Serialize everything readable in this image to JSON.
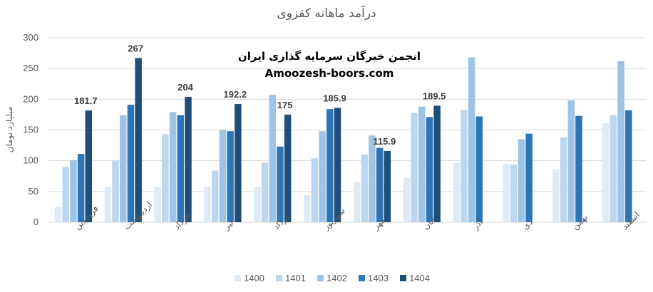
{
  "watermark": {
    "line1": "انجمن خبرگان سرمایه گذاری ایران",
    "line2": "Amoozesh-boors.com"
  },
  "chart_data": {
    "type": "bar",
    "title": "درآمد ماهانه کقزوی",
    "ylabel": "میلیارد تومان",
    "xlabel": "",
    "ylim": [
      0,
      300
    ],
    "yticks": [
      0,
      50,
      100,
      150,
      200,
      250,
      300
    ],
    "grid": true,
    "legend": "bottom",
    "categories": [
      "فروردین",
      "اردیبهشت",
      "خرداد",
      "تیر",
      "مرداد",
      "شهریور",
      "مهر",
      "آبان",
      "آذر",
      "دی",
      "بهمن",
      "اسفند"
    ],
    "series": [
      {
        "name": "1400",
        "color": "#deebf7",
        "values": [
          25,
          57,
          57,
          58,
          57,
          44,
          66,
          72,
          97,
          95,
          86,
          161
        ]
      },
      {
        "name": "1401",
        "color": "#bdd7ee",
        "values": [
          90,
          100,
          143,
          84,
          97,
          104,
          110,
          178,
          183,
          94,
          138,
          174
        ]
      },
      {
        "name": "1402",
        "color": "#9dc3e6",
        "values": [
          101,
          174,
          179,
          150,
          207,
          148,
          141,
          188,
          268,
          135,
          198,
          262
        ]
      },
      {
        "name": "1403",
        "color": "#2e75b6",
        "values": [
          111,
          191,
          174,
          148,
          123,
          184,
          121,
          171,
          172,
          144,
          173,
          182
        ]
      },
      {
        "name": "1404",
        "color": "#1f4e79",
        "values": [
          181.7,
          267,
          204,
          192.2,
          175,
          185.9,
          115.9,
          189.5,
          null,
          null,
          null,
          null
        ]
      }
    ],
    "data_labels": {
      "series": "1404",
      "values": [
        "181.7",
        "267",
        "204",
        "192.2",
        "175",
        "185.9",
        "115.9",
        "189.5"
      ]
    }
  }
}
